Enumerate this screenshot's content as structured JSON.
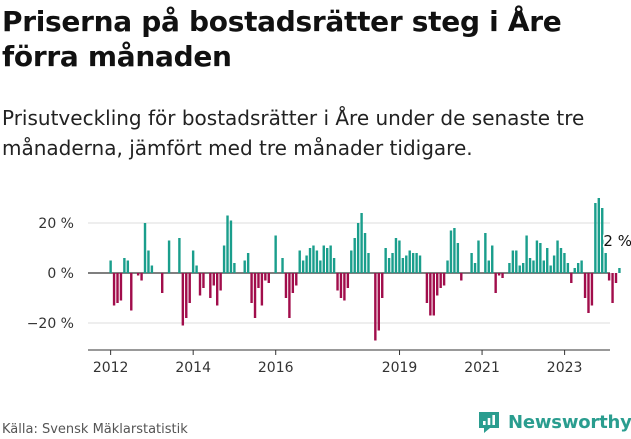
{
  "title": "Priserna på bostadsrätter steg i Åre förra månaden",
  "subtitle": "Prisutveckling för bostadsrätter i Åre under de senaste tre månaderna, jämfört med tre månader tidigare.",
  "source": "Källa: Svensk Mäklarstatistik",
  "brand": {
    "name": "Newsworthy",
    "icon": "newsworthy-logo-icon"
  },
  "colors": {
    "positive": "#1a9e8c",
    "negative": "#a10d4b",
    "grid": "#dddddd",
    "axis": "#333333"
  },
  "chart_data": {
    "type": "bar",
    "y_tick_labels": [
      "20 %",
      "0 %",
      "−20 %"
    ],
    "y_ticks": [
      20,
      0,
      -20
    ],
    "ylim": [
      -30,
      30
    ],
    "x_tick_labels": [
      "2012",
      "2014",
      "2016",
      "2019",
      "2021",
      "2023"
    ],
    "x_ticks": [
      2012,
      2014,
      2016,
      2019,
      2021,
      2023
    ],
    "xlim": [
      2011.5,
      2024.1
    ],
    "annotation": {
      "text": "2 %",
      "value": 2
    },
    "grid": true,
    "series": [
      {
        "start_year": 2012.0,
        "step": 0.0833,
        "values": [
          5,
          -13,
          -12,
          -11,
          6,
          5,
          -15,
          0,
          -1,
          -3,
          20,
          9,
          3,
          0,
          0,
          -8,
          0,
          13,
          0,
          0,
          14,
          -21,
          -18,
          -12,
          9,
          3,
          -9,
          -6,
          0,
          -10,
          -5,
          -13,
          -7,
          11,
          23,
          21,
          4,
          0,
          0,
          5,
          8,
          -12,
          -18,
          -6,
          -13,
          -3,
          -4,
          0,
          15,
          0,
          6,
          -10,
          -18,
          -8,
          -5,
          9,
          5,
          7,
          10,
          11,
          9,
          5,
          11,
          10,
          11,
          6,
          -7,
          -10,
          -11,
          -6,
          9,
          14,
          20,
          24,
          16,
          8,
          0,
          -27,
          -23,
          -10,
          10,
          6,
          8,
          14,
          13,
          6,
          7,
          9,
          8,
          8,
          7,
          0,
          -12,
          -17,
          -17,
          -9,
          -6,
          -5,
          5,
          17,
          18,
          12,
          -3,
          0,
          0,
          8,
          4,
          13,
          0,
          16,
          5,
          11,
          -8,
          -1,
          -2,
          0,
          4,
          9,
          9,
          3,
          4,
          15,
          6,
          5,
          13,
          12,
          5,
          10,
          3,
          7,
          13,
          10,
          8,
          4,
          -4,
          2,
          4,
          5,
          -10,
          -16,
          -13,
          28,
          30,
          26,
          8,
          -3,
          -12,
          -4,
          2
        ]
      }
    ]
  }
}
